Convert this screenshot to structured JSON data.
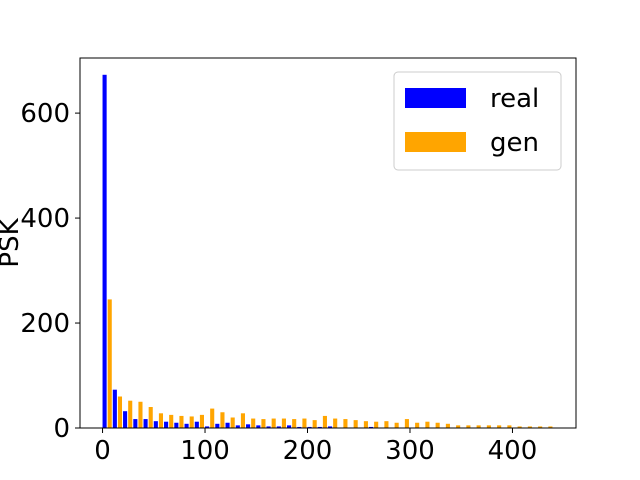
{
  "chart_data": {
    "type": "bar",
    "title": "",
    "xlabel": "",
    "ylabel": "PSK",
    "xlim": [
      -22,
      462
    ],
    "ylim": [
      0,
      705
    ],
    "xticks": [
      0,
      100,
      200,
      300,
      400
    ],
    "yticks": [
      0,
      200,
      400,
      600
    ],
    "bin_width": 10,
    "grid": false,
    "legend_position": "top-right",
    "x": [
      0,
      10,
      20,
      30,
      40,
      50,
      60,
      70,
      80,
      90,
      100,
      110,
      120,
      130,
      140,
      150,
      160,
      170,
      180,
      190,
      200,
      210,
      220,
      230,
      240,
      250,
      260,
      270,
      280,
      290,
      300,
      310,
      320,
      330,
      340,
      350,
      360,
      370,
      380,
      390,
      400,
      410,
      420,
      430
    ],
    "series": [
      {
        "name": "real",
        "color": "#0000ff",
        "values": [
          673,
          73,
          32,
          17,
          17,
          13,
          12,
          10,
          8,
          12,
          3,
          8,
          10,
          5,
          7,
          5,
          3,
          3,
          5,
          2,
          2,
          2,
          3,
          0,
          1,
          1,
          2,
          0,
          0,
          0,
          0,
          0,
          0,
          0,
          0,
          0,
          0,
          0,
          0,
          0,
          0,
          0,
          0,
          0
        ]
      },
      {
        "name": "gen",
        "color": "#ffa500",
        "values": [
          245,
          60,
          52,
          50,
          40,
          28,
          25,
          23,
          22,
          25,
          37,
          30,
          20,
          28,
          18,
          17,
          18,
          18,
          17,
          18,
          15,
          23,
          18,
          17,
          15,
          13,
          12,
          13,
          10,
          17,
          10,
          12,
          10,
          8,
          5,
          5,
          5,
          5,
          5,
          5,
          3,
          3,
          3,
          3
        ]
      }
    ]
  }
}
